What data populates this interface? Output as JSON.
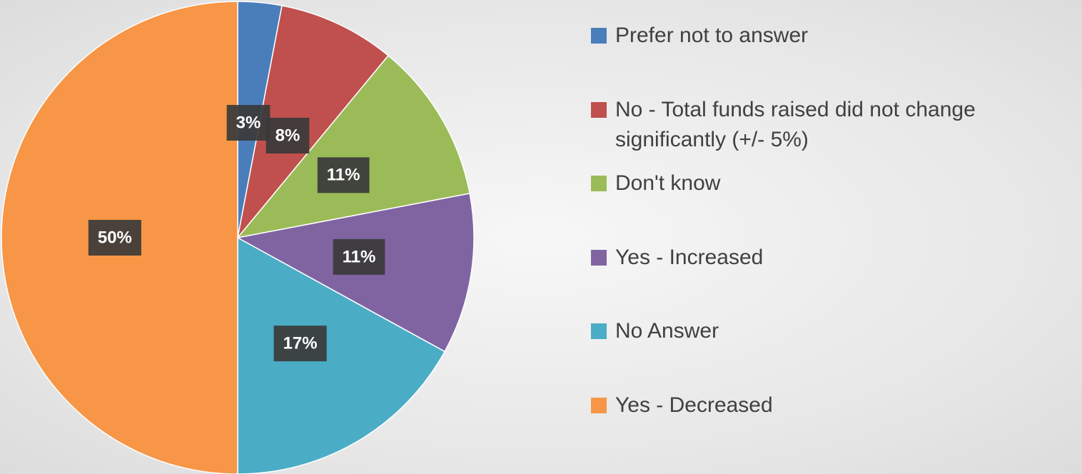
{
  "chart_data": {
    "type": "pie",
    "categories": [
      "Prefer not to answer",
      "No - Total funds raised did not change significantly (+/- 5%)",
      "Don't know",
      "Yes - Increased",
      "No Answer",
      "Yes - Decreased"
    ],
    "values": [
      3,
      8,
      11,
      11,
      17,
      50
    ],
    "value_labels": [
      "3%",
      "8%",
      "11%",
      "11%",
      "17%",
      "50%"
    ],
    "colors": [
      "#4a7ebb",
      "#c0504d",
      "#9bbb59",
      "#8064a2",
      "#4bacc6",
      "#f79646"
    ],
    "legend": "right"
  }
}
